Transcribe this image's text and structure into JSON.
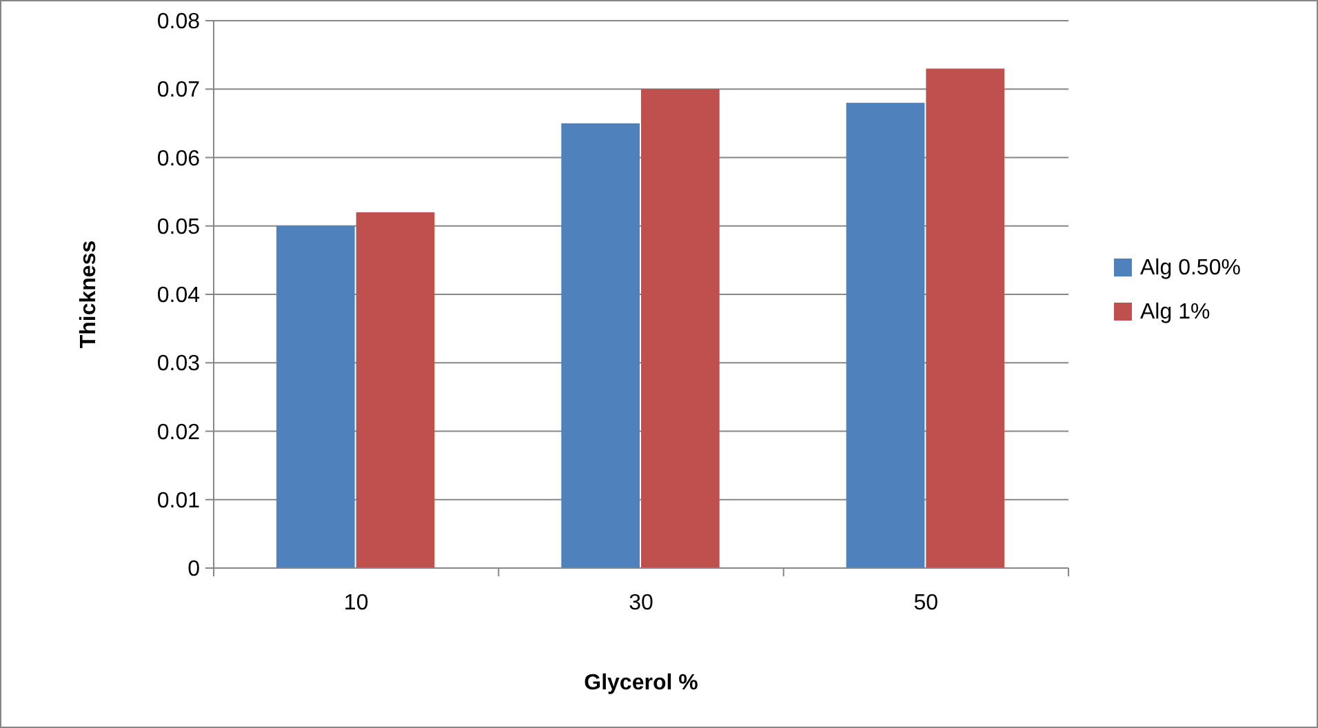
{
  "chart_data": {
    "type": "bar",
    "xlabel": "Glycerol %",
    "ylabel": "Thickness",
    "categories": [
      "10",
      "30",
      "50"
    ],
    "series": [
      {
        "name": "Alg 0.50%",
        "color": "#4f81bd",
        "values": [
          0.05,
          0.065,
          0.068
        ]
      },
      {
        "name": "Alg 1%",
        "color": "#c0504d",
        "values": [
          0.052,
          0.07,
          0.073
        ]
      }
    ],
    "ylim": [
      0,
      0.08
    ],
    "yticks": [
      0,
      0.01,
      0.02,
      0.03,
      0.04,
      0.05,
      0.06,
      0.07,
      0.08
    ],
    "grid": "y",
    "legend": "right"
  }
}
